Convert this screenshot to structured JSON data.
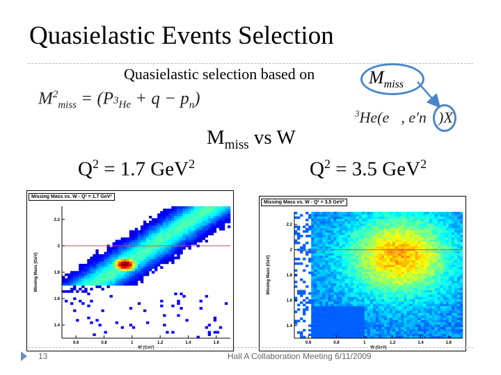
{
  "slide": {
    "title": "Quasielastic Events Selection",
    "subtitle": "Quasielastic selection based on",
    "mmiss_symbol": "M",
    "mmiss_sub": "miss",
    "formula": {
      "lhs": "M",
      "lhs_sup": "2",
      "lhs_sub": "miss",
      "rhs": "= (P",
      "rhs_sup": "3",
      "rhs_sub": "He",
      "rhs_tail": "+ q − p",
      "rhs_tail_sub": "n",
      "rhs_close": ")"
    },
    "reaction": {
      "pre_sup": "3",
      "body": "He(e⃗, e′n⃗)",
      "x": "X"
    },
    "mmiss_vs_w_main": "M",
    "mmiss_vs_w_sub": "miss",
    "mmiss_vs_w_tail": " vs W",
    "q2_left": {
      "text": "Q",
      "sup": "2",
      "val": " = 1.7 GeV",
      "sup2": "2"
    },
    "q2_right": {
      "text": "Q",
      "sup": "2",
      "val": " = 3.5 GeV",
      "sup2": "2"
    },
    "footer_number": "13",
    "footer_text": "Hall A Collaboration Meeting    6/11/2009"
  },
  "plots": [
    {
      "title": "Missing Mass vs. W - Q² = 1.7 GeV²",
      "xlabel": "W (GeV)",
      "ylabel": "Missing Mass (GeV)",
      "xticks": [
        "0.6",
        "0.8",
        "1",
        "1.2",
        "1.4",
        "1.6"
      ],
      "yticks": [
        "1.4",
        "1.6",
        "1.8",
        "2",
        "2.2"
      ],
      "cut_line_y": 2.0
    },
    {
      "title": "Missing Mass vs. W - Q² = 3.5 GeV²",
      "xlabel": "W (GeV)",
      "ylabel": "Missing Mass (GeV)",
      "xticks": [
        "0.6",
        "0.8",
        "1",
        "1.2",
        "1.4",
        "1.6"
      ],
      "yticks": [
        "1.4",
        "1.6",
        "1.8",
        "2",
        "2.2"
      ],
      "cut_line_y": 2.0
    }
  ],
  "colors": {
    "accent": "#4a86c8",
    "cut_line": "#c85050",
    "bullet": "#6c8ebf"
  }
}
